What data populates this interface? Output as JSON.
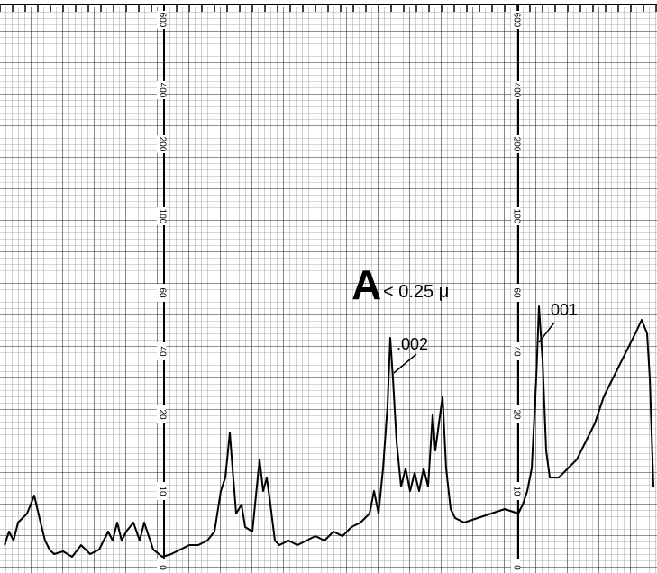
{
  "sample": "A",
  "size": "< 0.25 μ",
  "annotations": [
    ".002",
    ".001"
  ],
  "scale_labels": [
    "0",
    "10",
    "20",
    "40",
    "60",
    "100",
    "200",
    "400",
    "600"
  ]
}
